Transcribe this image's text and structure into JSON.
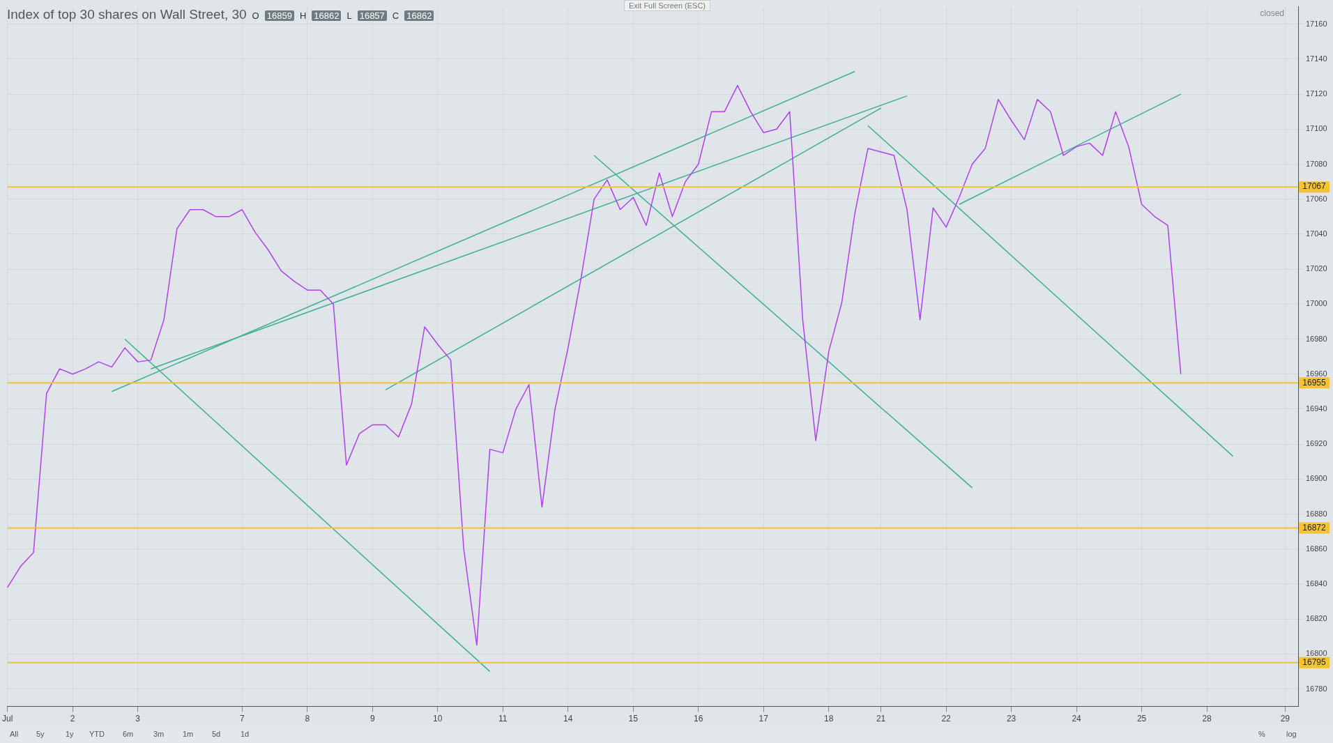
{
  "chart_data": {
    "type": "line",
    "title": "Index of top 30 shares on Wall Street, 30",
    "annotations": [
      "O",
      "16859",
      "H",
      "16862",
      "L",
      "16857",
      "C",
      "16862",
      "closed",
      "Exit Full Screen (ESC)",
      "All",
      "5y",
      "1y",
      "YTD",
      "6m",
      "3m",
      "1m",
      "5d",
      "1d",
      "%",
      "log"
    ],
    "categories": [
      "Jul",
      null,
      null,
      null,
      null,
      "2",
      null,
      null,
      null,
      null,
      "3",
      null,
      null,
      null,
      null,
      null,
      null,
      null,
      "7",
      null,
      null,
      null,
      null,
      "8",
      null,
      null,
      null,
      null,
      "9",
      null,
      null,
      null,
      null,
      "10",
      null,
      null,
      null,
      null,
      "11",
      null,
      null,
      null,
      null,
      "14",
      null,
      null,
      null,
      null,
      "15",
      null,
      null,
      null,
      null,
      "16",
      null,
      null,
      null,
      null,
      "17",
      null,
      null,
      null,
      null,
      "18",
      null,
      null,
      null,
      "21",
      null,
      null,
      null,
      null,
      "22",
      null,
      null,
      null,
      null,
      "23",
      null,
      null,
      null,
      null,
      "24",
      null,
      null,
      null,
      null,
      "25",
      null,
      null,
      null,
      null,
      "28",
      null,
      null,
      null,
      null,
      null,
      "29",
      null
    ],
    "ylim": [
      16770,
      17170
    ],
    "yticks": [
      16780,
      16800,
      16820,
      16840,
      16860,
      16880,
      16900,
      16920,
      16940,
      16960,
      16980,
      17000,
      17020,
      17040,
      17060,
      17080,
      17100,
      17120,
      17140,
      17160
    ],
    "grid": true,
    "marker": "none",
    "line_style": "solid",
    "ref_lines": [
      {
        "axis": "y",
        "value": 17067,
        "label": "17067",
        "color": "#f5c332"
      },
      {
        "axis": "y",
        "value": 16955,
        "label": "16955",
        "color": "#f5c332"
      },
      {
        "axis": "y",
        "value": 16872,
        "label": "16872",
        "color": "#f5c332"
      },
      {
        "axis": "y",
        "value": 16795,
        "label": "16795",
        "color": "#f5c332"
      }
    ],
    "series": [
      {
        "color": "#b040f0",
        "values": [
          16838,
          16850,
          16858,
          16949,
          16963,
          16960,
          16963,
          16967,
          16964,
          16975,
          16967,
          16968,
          16991,
          17043,
          17054,
          17054,
          17050,
          17050,
          17054,
          17041,
          17031,
          17019,
          17013,
          17008,
          17008,
          17000,
          16908,
          16926,
          16931,
          16931,
          16924,
          16943,
          16987,
          16977,
          16968,
          16860,
          16805,
          16917,
          16915,
          16940,
          16954,
          16884,
          16940,
          16975,
          17015,
          17060,
          17071,
          17054,
          17061,
          17045,
          17075,
          17050,
          17070,
          17080,
          17110,
          17110,
          17125,
          17110,
          17098,
          17100,
          17110,
          16991,
          16922,
          16973,
          17001,
          17052,
          17089,
          17087,
          17085,
          17054,
          16991,
          17055,
          17044,
          17061,
          17080,
          17089,
          17117,
          17105,
          17094,
          17117,
          17110,
          17085,
          17090,
          17092,
          17085,
          17110,
          17090,
          17057,
          17050,
          17045,
          16960,
          null,
          null,
          null,
          null,
          null,
          null,
          null,
          null,
          null
        ]
      },
      {
        "color": "#3cae95",
        "values": [
          null,
          null,
          null,
          null,
          null,
          null,
          null,
          null,
          16950,
          null,
          null,
          null,
          null,
          null,
          null,
          null,
          null,
          null,
          null,
          null,
          null,
          null,
          null,
          null,
          null,
          null,
          null,
          null,
          null,
          null,
          null,
          null,
          null,
          null,
          null,
          null,
          null,
          null,
          null,
          null,
          null,
          null,
          null,
          null,
          null,
          null,
          null,
          null,
          null,
          null,
          null,
          null,
          null,
          null,
          null,
          null,
          null,
          null,
          null,
          null,
          null,
          null,
          null,
          null,
          null,
          17133,
          null,
          null,
          null,
          null,
          null,
          null,
          null,
          null,
          null,
          null,
          null,
          null,
          null,
          null,
          null,
          null,
          null,
          null,
          null,
          null,
          null,
          null,
          null,
          null,
          null,
          null,
          null,
          null,
          null,
          null,
          null,
          null,
          null,
          null
        ]
      },
      {
        "color": "#3cae95",
        "values": [
          null,
          null,
          null,
          null,
          null,
          null,
          null,
          null,
          null,
          null,
          null,
          16963,
          null,
          null,
          null,
          null,
          null,
          null,
          null,
          null,
          null,
          null,
          null,
          null,
          null,
          null,
          null,
          null,
          null,
          null,
          null,
          null,
          null,
          null,
          null,
          null,
          null,
          null,
          null,
          null,
          null,
          null,
          null,
          null,
          null,
          null,
          null,
          null,
          null,
          null,
          null,
          null,
          null,
          null,
          null,
          null,
          null,
          null,
          null,
          null,
          null,
          null,
          null,
          null,
          null,
          null,
          null,
          null,
          null,
          17119,
          null,
          null,
          null,
          null,
          null,
          null,
          null,
          null,
          null,
          null,
          null,
          null,
          null,
          null,
          null,
          null,
          null,
          null,
          null,
          null,
          null,
          null,
          null,
          null,
          null,
          null,
          null,
          null,
          null,
          null
        ]
      },
      {
        "color": "#3cae95",
        "values": [
          null,
          null,
          null,
          null,
          null,
          null,
          null,
          null,
          null,
          null,
          null,
          null,
          null,
          null,
          null,
          null,
          null,
          null,
          null,
          null,
          null,
          null,
          null,
          null,
          null,
          null,
          null,
          null,
          null,
          16951,
          null,
          null,
          null,
          null,
          null,
          null,
          null,
          null,
          null,
          null,
          null,
          null,
          null,
          null,
          null,
          null,
          null,
          null,
          null,
          null,
          null,
          null,
          null,
          null,
          null,
          null,
          null,
          null,
          null,
          null,
          null,
          null,
          null,
          null,
          null,
          null,
          null,
          17112,
          null,
          null,
          null,
          null,
          null,
          null,
          null,
          null,
          null,
          null,
          null,
          null,
          null,
          null,
          null,
          null,
          null,
          null,
          null,
          null,
          null,
          null,
          null,
          null,
          null,
          null,
          null,
          null,
          null,
          null,
          null,
          null
        ]
      },
      {
        "color": "#3cae95",
        "values": [
          null,
          null,
          null,
          null,
          null,
          null,
          null,
          null,
          null,
          null,
          null,
          null,
          null,
          null,
          null,
          null,
          null,
          null,
          null,
          null,
          null,
          null,
          null,
          null,
          null,
          null,
          null,
          null,
          null,
          null,
          null,
          null,
          null,
          null,
          null,
          null,
          null,
          null,
          null,
          null,
          null,
          null,
          null,
          null,
          null,
          null,
          null,
          null,
          null,
          null,
          null,
          null,
          null,
          null,
          null,
          null,
          null,
          null,
          null,
          null,
          null,
          null,
          null,
          null,
          null,
          null,
          null,
          null,
          null,
          null,
          null,
          null,
          null,
          17057,
          null,
          null,
          null,
          null,
          null,
          null,
          null,
          null,
          null,
          null,
          null,
          null,
          null,
          null,
          null,
          null,
          17120,
          null,
          null,
          null,
          null,
          null,
          null,
          null,
          null,
          null
        ]
      },
      {
        "color": "#3cae95",
        "values": [
          null,
          null,
          null,
          null,
          null,
          null,
          null,
          null,
          null,
          16980,
          null,
          null,
          null,
          null,
          null,
          null,
          null,
          null,
          null,
          null,
          null,
          null,
          null,
          null,
          null,
          null,
          null,
          null,
          null,
          null,
          null,
          null,
          null,
          null,
          null,
          null,
          null,
          16790,
          null,
          null,
          null,
          null,
          null,
          null,
          null,
          null,
          null,
          null,
          null,
          null,
          null,
          null,
          null,
          null,
          null,
          null,
          null,
          null,
          null,
          null,
          null,
          null,
          null,
          null,
          null,
          null,
          null,
          null,
          null,
          null,
          null,
          null,
          null,
          null,
          null,
          null,
          null,
          null,
          null,
          null,
          null,
          null,
          null,
          null,
          null,
          null,
          null,
          null,
          null,
          null,
          null,
          null,
          null,
          null,
          null,
          null,
          null,
          null,
          null,
          null
        ]
      },
      {
        "color": "#3cae95",
        "values": [
          null,
          null,
          null,
          null,
          null,
          null,
          null,
          null,
          null,
          null,
          null,
          null,
          null,
          null,
          null,
          null,
          null,
          null,
          null,
          null,
          null,
          null,
          null,
          null,
          null,
          null,
          null,
          null,
          null,
          null,
          null,
          null,
          null,
          null,
          null,
          null,
          null,
          null,
          null,
          null,
          null,
          null,
          null,
          null,
          null,
          17085,
          null,
          null,
          null,
          null,
          null,
          null,
          null,
          null,
          null,
          null,
          null,
          null,
          null,
          null,
          null,
          null,
          null,
          null,
          null,
          null,
          null,
          null,
          null,
          null,
          null,
          null,
          null,
          null,
          16895,
          null,
          null,
          null,
          null,
          null,
          null,
          null,
          null,
          null,
          null,
          null,
          null,
          null,
          null,
          null,
          null,
          null,
          null,
          null,
          null,
          null,
          null,
          null,
          null,
          null
        ]
      },
      {
        "color": "#3cae95",
        "values": [
          null,
          null,
          null,
          null,
          null,
          null,
          null,
          null,
          null,
          null,
          null,
          null,
          null,
          null,
          null,
          null,
          null,
          null,
          null,
          null,
          null,
          null,
          null,
          null,
          null,
          null,
          null,
          null,
          null,
          null,
          null,
          null,
          null,
          null,
          null,
          null,
          null,
          null,
          null,
          null,
          null,
          null,
          null,
          null,
          null,
          null,
          null,
          null,
          null,
          null,
          null,
          null,
          null,
          null,
          null,
          null,
          null,
          null,
          null,
          null,
          null,
          null,
          null,
          null,
          null,
          null,
          17102,
          null,
          null,
          null,
          null,
          null,
          null,
          null,
          null,
          null,
          null,
          null,
          null,
          null,
          null,
          null,
          null,
          null,
          null,
          null,
          null,
          null,
          null,
          null,
          null,
          null,
          null,
          null,
          16913,
          null,
          null,
          null,
          null,
          null
        ]
      }
    ]
  }
}
